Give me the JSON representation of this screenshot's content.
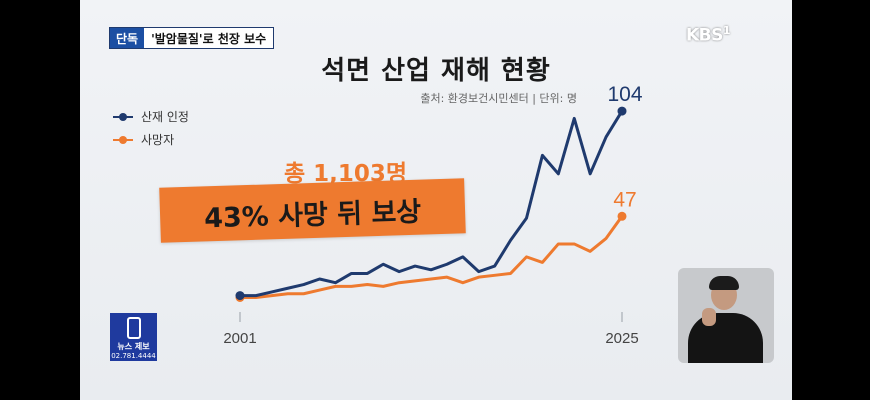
{
  "screen": {
    "tag": "단독",
    "headline": "'발암물질'로 천장 보수",
    "logo": "KBS",
    "channel": "1"
  },
  "title": "석면 산업 재해 현황",
  "source": "출처: 환경보건시민센터  |  단위: 명",
  "callout": {
    "total": "총 1,103명",
    "message": "43% 사망 뒤 보상"
  },
  "news_badge": {
    "label": "뉴스 제보",
    "phone": "02.781.4444"
  },
  "colors": {
    "navy": "#1f3a6e",
    "orange": "#ee7a2f",
    "badge": "#1f3a9e"
  },
  "chart_data": {
    "type": "line",
    "title": "석면 산업 재해 현황",
    "xlabel": "",
    "ylabel": "",
    "x": [
      2001,
      2002,
      2003,
      2004,
      2005,
      2006,
      2007,
      2008,
      2009,
      2010,
      2011,
      2012,
      2013,
      2014,
      2015,
      2016,
      2017,
      2018,
      2019,
      2020,
      2021,
      2022,
      2023,
      2024,
      2025
    ],
    "x_tick_labels": [
      "2001",
      "2025"
    ],
    "ylim": [
      0,
      110
    ],
    "legend_position": "top-left",
    "series": [
      {
        "name": "산재 인정",
        "color": "#1f3a6e",
        "values": [
          4,
          4,
          6,
          8,
          10,
          13,
          11,
          16,
          16,
          21,
          17,
          20,
          18,
          21,
          25,
          17,
          20,
          34,
          46,
          80,
          70,
          100,
          70,
          90,
          104
        ],
        "end_label": "104"
      },
      {
        "name": "사망자",
        "color": "#ee7a2f",
        "values": [
          3,
          3,
          4,
          5,
          5,
          7,
          9,
          9,
          10,
          9,
          11,
          12,
          13,
          14,
          11,
          14,
          15,
          16,
          25,
          22,
          32,
          32,
          28,
          35,
          47
        ],
        "end_label": "47"
      }
    ]
  }
}
